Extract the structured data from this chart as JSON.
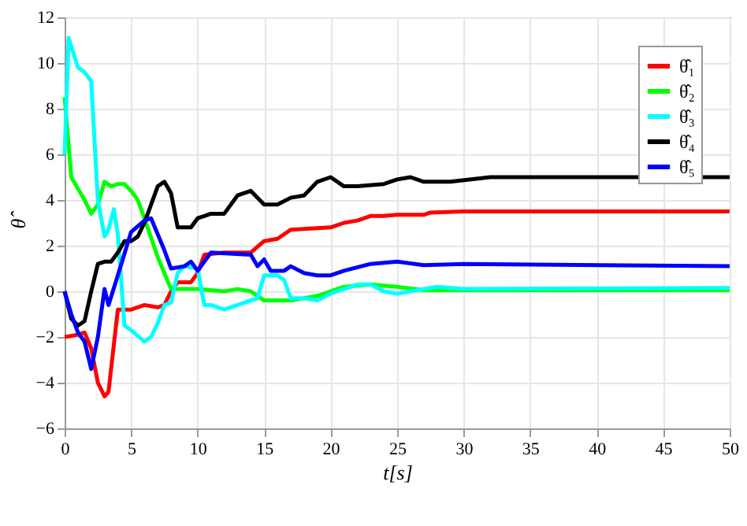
{
  "chart_data": {
    "type": "line",
    "xlabel": "t[s]",
    "ylabel": "θ̂",
    "xlim": [
      0,
      50
    ],
    "ylim": [
      -6,
      12
    ],
    "xticks": [
      0,
      5,
      10,
      15,
      20,
      25,
      30,
      35,
      40,
      45,
      50
    ],
    "yticks": [
      -6,
      -4,
      -2,
      0,
      2,
      4,
      6,
      8,
      10,
      12
    ],
    "grid": true,
    "legend": "top right",
    "marker": "none",
    "line_style": "solid",
    "series": [
      {
        "name": "θ̂₁",
        "color": "#ff0000",
        "x": [
          0,
          1,
          1.5,
          2,
          2.5,
          3,
          3.3,
          4,
          5,
          6,
          7,
          7.5,
          8,
          8.5,
          9.5,
          10,
          10.5,
          12,
          14,
          15,
          16,
          17,
          20,
          21,
          22,
          23,
          24,
          25,
          27,
          27.5,
          30,
          50
        ],
        "values": [
          -2,
          -1.9,
          -1.8,
          -2.5,
          -4,
          -4.6,
          -4.4,
          -0.8,
          -0.8,
          -0.6,
          -0.7,
          -0.6,
          0,
          0.4,
          0.4,
          0.8,
          1.6,
          1.7,
          1.7,
          2.2,
          2.3,
          2.7,
          2.8,
          3.0,
          3.1,
          3.3,
          3.3,
          3.35,
          3.35,
          3.45,
          3.5,
          3.5
        ]
      },
      {
        "name": "θ̂₂",
        "color": "#00ff00",
        "x": [
          0,
          0.5,
          1,
          1.5,
          2,
          2.5,
          3,
          3.5,
          4,
          4.5,
          5,
          5.5,
          6,
          7,
          8,
          10,
          12,
          13,
          14,
          15,
          17,
          19,
          21,
          23,
          25,
          27,
          50
        ],
        "values": [
          8.5,
          5,
          4.5,
          4,
          3.4,
          3.8,
          4.8,
          4.6,
          4.7,
          4.7,
          4.4,
          4,
          3.2,
          1.5,
          0.1,
          0.1,
          0,
          0.1,
          0,
          -0.4,
          -0.4,
          -0.2,
          0.2,
          0.3,
          0.2,
          0.05,
          0.05
        ]
      },
      {
        "name": "θ̂₃",
        "color": "#00ffff",
        "x": [
          0,
          0.3,
          1,
          1.5,
          2,
          2.5,
          3,
          3.3,
          3.7,
          4,
          4.5,
          5,
          6,
          6.5,
          7,
          7.5,
          8,
          8.5,
          9,
          10,
          10.5,
          11,
          12,
          14,
          14.5,
          15,
          16,
          16.5,
          17,
          18,
          19,
          20,
          22,
          23,
          24,
          25,
          27,
          28,
          30,
          50
        ],
        "values": [
          6,
          11.1,
          9.8,
          9.6,
          9.2,
          4,
          2.4,
          2.7,
          3.6,
          2.5,
          -1.5,
          -1.7,
          -2.2,
          -2,
          -1.4,
          -0.6,
          -0.5,
          0.8,
          1.1,
          1,
          -0.6,
          -0.6,
          -0.8,
          -0.4,
          -0.3,
          0.7,
          0.7,
          0.5,
          -0.3,
          -0.3,
          -0.4,
          -0.1,
          0.3,
          0.3,
          0,
          -0.1,
          0.1,
          0.2,
          0.1,
          0.15
        ]
      },
      {
        "name": "θ̂₄",
        "color": "#000000",
        "x": [
          0,
          0.5,
          1,
          1.5,
          2,
          2.5,
          3,
          3.5,
          4,
          4.5,
          5,
          5.5,
          6,
          6.5,
          7,
          7.5,
          8,
          8.5,
          9.5,
          10,
          10.5,
          11,
          12,
          13,
          14,
          15,
          16,
          17,
          18,
          19,
          20,
          21,
          22,
          24,
          25,
          26,
          27,
          29,
          32,
          50
        ],
        "values": [
          0,
          -1.2,
          -1.5,
          -1.3,
          0,
          1.2,
          1.3,
          1.3,
          1.7,
          2.2,
          2.2,
          2.4,
          3,
          3.8,
          4.6,
          4.8,
          4.3,
          2.8,
          2.8,
          3.2,
          3.3,
          3.4,
          3.4,
          4.2,
          4.4,
          3.8,
          3.8,
          4.1,
          4.2,
          4.8,
          5.0,
          4.6,
          4.6,
          4.7,
          4.9,
          5.0,
          4.8,
          4.8,
          5.0,
          5.0
        ]
      },
      {
        "name": "θ̂₅",
        "color": "#0000ff",
        "x": [
          0,
          0.5,
          1,
          1.5,
          2,
          2.5,
          3,
          3.3,
          4,
          5,
          6,
          6.5,
          7,
          7.5,
          8,
          9,
          9.5,
          10,
          11,
          14,
          14.5,
          15,
          15.5,
          16.5,
          17,
          18,
          19,
          20,
          21,
          23,
          25,
          27,
          30,
          50
        ],
        "values": [
          0,
          -1,
          -1.8,
          -2.2,
          -3.4,
          -2,
          0.1,
          -0.6,
          0.7,
          2.6,
          3.1,
          3.2,
          2.5,
          1.8,
          1.0,
          1.1,
          1.3,
          0.9,
          1.7,
          1.6,
          1.1,
          1.4,
          0.9,
          0.9,
          1.1,
          0.8,
          0.7,
          0.7,
          0.9,
          1.2,
          1.3,
          1.15,
          1.2,
          1.1
        ]
      }
    ]
  }
}
